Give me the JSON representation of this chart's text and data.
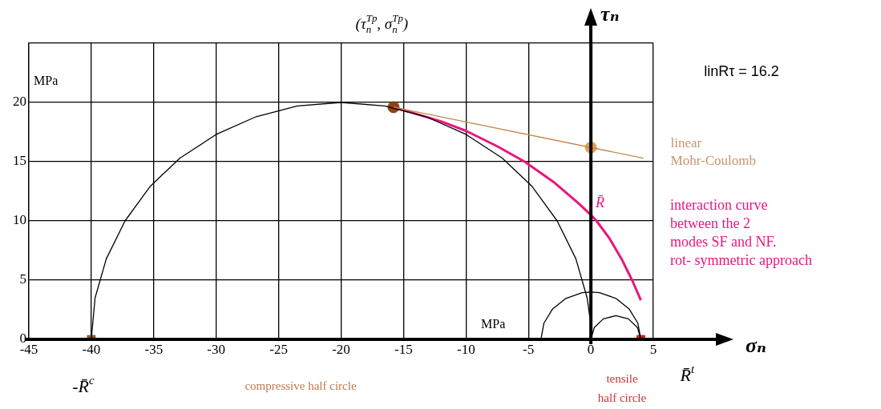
{
  "chart_data": {
    "type": "line",
    "xlabel": "σₙ",
    "ylabel": "τₙ",
    "xlim": [
      -45,
      5
    ],
    "xticks": [
      -45,
      -40,
      -35,
      -30,
      -25,
      -20,
      -15,
      -10,
      -5,
      0,
      5
    ],
    "ylim": [
      0,
      25
    ],
    "yticks": [
      0,
      5,
      10,
      15,
      20,
      {
        "value": 25,
        "label": null
      }
    ],
    "grid": true,
    "legend": false,
    "series": [
      {
        "type": "line",
        "color": "#000000",
        "x": [
          -40,
          -39.7,
          -38.8,
          -37.3,
          -35.3,
          -32.9,
          -30,
          -26.8,
          -23.5,
          -20,
          -16.5,
          -13.2,
          -10,
          -7.1,
          -4.7,
          -2.7,
          -1.2,
          -0.3,
          -0.1
        ],
        "values": [
          0,
          3.5,
          6.8,
          10,
          12.9,
          15.3,
          17.3,
          18.8,
          19.7,
          20,
          19.7,
          18.8,
          17.3,
          15.3,
          12.9,
          10,
          6.8,
          3.5,
          2
        ]
      },
      {
        "type": "line",
        "color": "#000000",
        "x": [
          -4,
          -3.76,
          -3.06,
          -2,
          -0.69,
          0,
          0.69,
          2,
          3.06,
          3.76,
          4
        ],
        "values": [
          0,
          1.37,
          2.57,
          3.46,
          3.94,
          4,
          3.94,
          3.46,
          2.57,
          1.37,
          0
        ]
      },
      {
        "type": "line",
        "color": "#000000",
        "x": [
          0,
          0.27,
          1,
          2,
          3,
          3.73,
          4
        ],
        "values": [
          0,
          1,
          1.73,
          2,
          1.73,
          1,
          0
        ]
      },
      {
        "type": "line",
        "color": "#c8874a",
        "x": [
          -15.8,
          0,
          4.2
        ],
        "values": [
          19.6,
          16.2,
          15.3
        ]
      },
      {
        "type": "line",
        "color": "#e8177d",
        "x": [
          -15.8,
          -12,
          -10,
          -7.5,
          -5.3,
          -3,
          -1,
          0,
          0.45,
          1.5,
          2.5,
          3.3,
          4
        ],
        "values": [
          19.6,
          18.4,
          17.6,
          16.3,
          15,
          13.3,
          11.5,
          10.5,
          10,
          8.5,
          6.7,
          5,
          3.3
        ]
      },
      {
        "type": "scatter",
        "marker": "circle",
        "color": "#8b4513",
        "x": [
          -15.8
        ],
        "values": [
          19.6
        ]
      },
      {
        "type": "scatter",
        "marker": "circle",
        "color": "#e0a060",
        "x": [
          0
        ],
        "values": [
          16.2
        ]
      },
      {
        "type": "scatter",
        "marker": "square",
        "color": "#8b5a2b",
        "x": [
          -40
        ],
        "values": [
          0
        ]
      },
      {
        "type": "scatter",
        "marker": "square",
        "color": "#cc2222",
        "x": [
          4
        ],
        "values": [
          0
        ]
      }
    ],
    "annotations": [
      "(τ$_{n}$$^{Tp}$, σ$_{n}$$^{Tp}$)",
      "linRτ = 16.2",
      {
        "text": "linear\nMohr-Coulomb",
        "x": 4.2,
        "y": 15.3
      },
      {
        "text": "R̄",
        "x": 0,
        "y": 10.5
      },
      "interaction curve\nbetween the 2\nmodes SF and NF.\nrot- symmetric approach",
      "MPa",
      "MPa",
      {
        "text": "-R̄$^{c}$",
        "x": -40,
        "y": 0
      },
      "compressive half circle",
      "tensile\nhalf circle",
      {
        "text": "R̄$^{t}$",
        "x": 4,
        "y": 0
      }
    ]
  }
}
